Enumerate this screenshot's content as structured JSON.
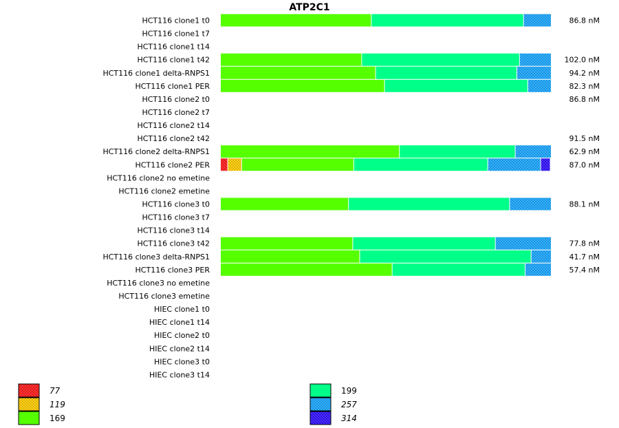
{
  "chart_data": {
    "type": "bar",
    "orientation": "horizontal",
    "stacked": true,
    "normalized": true,
    "title": "ATP2C1",
    "categories": [
      "HCT116 clone1 t0",
      "HCT116 clone1 t7",
      "HCT116 clone1 t14",
      "HCT116 clone1 t42",
      "HCT116 clone1 delta-RNPS1",
      "HCT116 clone1 PER",
      "HCT116 clone2 t0",
      "HCT116 clone2 t7",
      "HCT116 clone2 t14",
      "HCT116 clone2 t42",
      "HCT116 clone2 delta-RNPS1",
      "HCT116 clone2 PER",
      "HCT116 clone2 no emetine",
      "HCT116 clone2 emetine",
      "HCT116 clone3 t0",
      "HCT116 clone3 t7",
      "HCT116 clone3 t14",
      "HCT116 clone3 t42",
      "HCT116 clone3 delta-RNPS1",
      "HCT116 clone3 PER",
      "HCT116 clone3 no emetine",
      "HCT116 clone3 emetine",
      "HIEC clone1 t0",
      "HIEC clone1 t14",
      "HIEC clone2 t0",
      "HIEC clone2 t14",
      "HIEC clone3 t0",
      "HIEC clone3 t14"
    ],
    "series": [
      {
        "name": "77",
        "color": "#ff1a1a",
        "pattern": "hatched",
        "values": [
          0,
          0,
          0,
          0,
          0,
          0,
          0,
          0,
          0,
          0,
          0,
          0.022,
          0,
          0,
          0,
          0,
          0,
          0,
          0,
          0,
          0,
          0,
          0,
          0,
          0,
          0,
          0,
          0
        ]
      },
      {
        "name": "119",
        "color": "#ffcc00",
        "pattern": "hatched",
        "values": [
          0,
          0,
          0,
          0,
          0,
          0,
          0,
          0,
          0,
          0,
          0,
          0.042,
          0,
          0,
          0,
          0,
          0,
          0,
          0,
          0,
          0,
          0,
          0,
          0,
          0,
          0,
          0,
          0
        ]
      },
      {
        "name": "169",
        "color": "#55ff00",
        "pattern": "solid",
        "values": [
          0.456,
          0,
          0,
          0.427,
          0.469,
          0.496,
          0,
          0,
          0,
          0,
          0.541,
          0.339,
          0,
          0,
          0.387,
          0,
          0,
          0.4,
          0.421,
          0.519,
          0,
          0,
          0,
          0,
          0,
          0,
          0,
          0
        ]
      },
      {
        "name": "199",
        "color": "#00ff88",
        "pattern": "solid",
        "values": [
          0.46,
          0,
          0,
          0.477,
          0.427,
          0.433,
          0,
          0,
          0,
          0,
          0.35,
          0.405,
          0,
          0,
          0.487,
          0,
          0,
          0.431,
          0.518,
          0.402,
          0,
          0,
          0,
          0,
          0,
          0,
          0,
          0
        ]
      },
      {
        "name": "257",
        "color": "#1aa7ff",
        "pattern": "hatched",
        "values": [
          0.084,
          0,
          0,
          0.096,
          0.104,
          0.071,
          0,
          0,
          0,
          0,
          0.109,
          0.16,
          0,
          0,
          0.126,
          0,
          0,
          0.169,
          0.061,
          0.079,
          0,
          0,
          0,
          0,
          0,
          0,
          0,
          0
        ]
      },
      {
        "name": "314",
        "color": "#3311ff",
        "pattern": "hatched",
        "values": [
          0,
          0,
          0,
          0,
          0,
          0,
          0,
          0,
          0,
          0,
          0,
          0.029,
          0,
          0,
          0,
          0,
          0,
          0,
          0,
          0,
          0,
          0,
          0,
          0,
          0,
          0,
          0,
          0
        ]
      }
    ],
    "row_values": [
      "86.8 nM",
      "",
      "",
      "102.0 nM",
      "94.2 nM",
      "82.3 nM",
      "86.8 nM",
      "",
      "",
      "91.5 nM",
      "62.9 nM",
      "87.0 nM",
      "",
      "",
      "88.1 nM",
      "",
      "",
      "77.8 nM",
      "41.7 nM",
      "57.4 nM",
      "",
      "",
      "",
      "",
      "",
      "",
      "",
      ""
    ],
    "legend_italic": [
      "77",
      "119",
      "257",
      "314"
    ],
    "legend_position": "bottom"
  }
}
